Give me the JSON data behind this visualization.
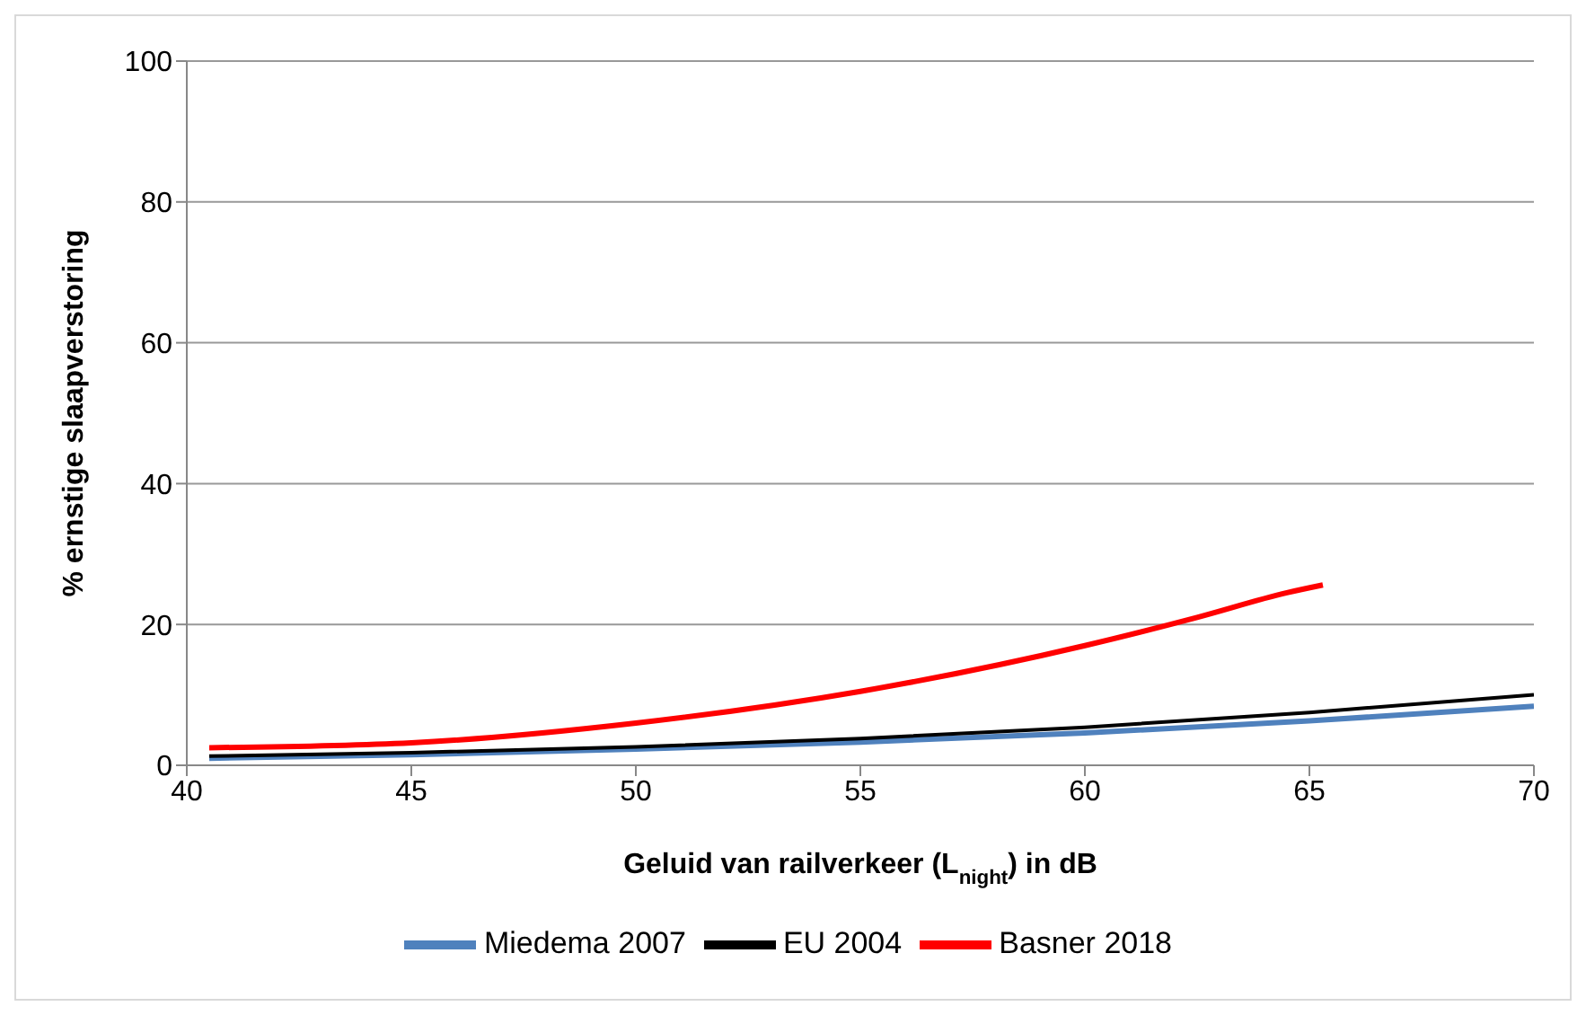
{
  "chart_data": {
    "type": "line",
    "xlabel": "Geluid van railverkeer (L$_{night}$) in dB",
    "ylabel": "% ernstige slaapverstoring",
    "xlim": [
      40,
      70
    ],
    "xticks": [
      40,
      45,
      50,
      55,
      60,
      65,
      70
    ],
    "ylim": [
      0,
      100
    ],
    "yticks": [
      0,
      20,
      40,
      60,
      80,
      100
    ],
    "grid": "y",
    "legend": "bottom",
    "marker": "none",
    "line_style": "solid",
    "series": [
      {
        "name": "Miedema 2007",
        "color": "#4f81bd",
        "x": [
          40.5,
          45,
          50,
          55,
          60,
          65,
          70
        ],
        "values": [
          1.0,
          1.5,
          2.3,
          3.3,
          4.6,
          6.3,
          8.4
        ]
      },
      {
        "name": "EU 2004",
        "color": "#000000",
        "x": [
          40.5,
          45,
          50,
          55,
          60,
          65,
          70
        ],
        "values": [
          1.3,
          1.8,
          2.6,
          3.8,
          5.4,
          7.5,
          10
        ]
      },
      {
        "name": "Basner 2018",
        "color": "#ff0000",
        "x": [
          40.5,
          45,
          50,
          55,
          60,
          62.5,
          64.5,
          65.3
        ],
        "values": [
          2.5,
          3.2,
          6,
          10.5,
          17,
          21,
          24.5,
          25.6
        ]
      }
    ]
  }
}
